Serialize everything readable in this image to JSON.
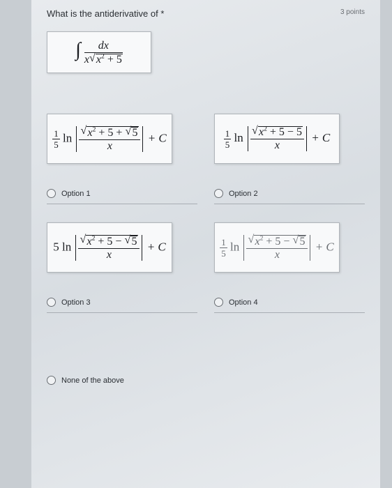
{
  "header": {
    "question_prefix": "What is the antiderivative of",
    "asterisk": "*",
    "points": "3 points"
  },
  "integral": {
    "numerator": "dx",
    "den_lead": "x",
    "den_radicand": "x",
    "den_exp": "2",
    "den_tail": " + 5"
  },
  "options": {
    "opt1": {
      "lead_num": "1",
      "lead_den": "5",
      "ln": "ln",
      "num_rad": "x",
      "num_exp": "2",
      "num_mid": " + 5 + ",
      "num_rad2": "5",
      "den_x": "x",
      "plusC": " + C",
      "label": "Option 1"
    },
    "opt2": {
      "lead_num": "1",
      "lead_den": "5",
      "ln": "ln",
      "num_rad": "x",
      "num_exp": "2",
      "num_mid": " + 5 − 5",
      "den_x": "x",
      "plusC": " + C",
      "label": "Option 2"
    },
    "opt3": {
      "lead": "5 ln",
      "num_rad": "x",
      "num_exp": "2",
      "num_mid": " + 5 − ",
      "num_rad2": "5",
      "den_x": "x",
      "plusC": " + C",
      "label": "Option 3"
    },
    "opt4": {
      "lead_num": "1",
      "lead_den": "5",
      "ln": "ln",
      "num_rad": "x",
      "num_exp": "2",
      "num_mid": " + 5 − ",
      "num_rad2": "5",
      "den_x": "x",
      "plusC": " + C",
      "label": "Option 4"
    },
    "none": {
      "label": "None of the above"
    }
  },
  "colors": {
    "page_bg": "#e8ebee",
    "card_bg": "#f8f9fa",
    "border": "#b0b5ba",
    "text": "#2a2e33"
  }
}
